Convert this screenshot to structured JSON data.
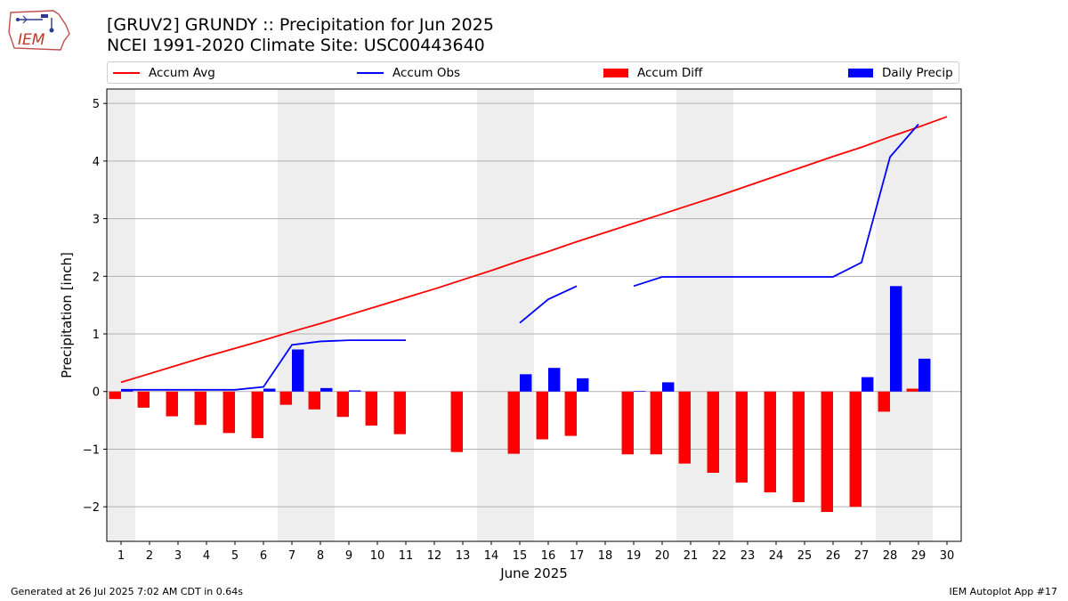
{
  "header": {
    "title_line1": "[GRUV2] GRUNDY :: Precipitation for Jun 2025",
    "title_line2": "NCEI 1991-2020 Climate Site: USC00443640",
    "logo_text": "IEM"
  },
  "footer": {
    "generated": "Generated at 26 Jul 2025 7:02 AM CDT in 0.64s",
    "app": "IEM Autoplot App #17"
  },
  "colors": {
    "avg": "#ff0000",
    "obs": "#0000ff",
    "diff": "#ff0000",
    "daily": "#0000ff",
    "weekend_band": "#eeeeee",
    "grid": "#b0b0b0"
  },
  "chart_data": {
    "type": "bar",
    "title": "[GRUV2] GRUNDY :: Precipitation for Jun 2025",
    "subtitle": "NCEI 1991-2020 Climate Site: USC00443640",
    "xlabel": "June 2025",
    "ylabel": "Precipitation [inch]",
    "xlim": [
      0.5,
      30.5
    ],
    "ylim": [
      -2.6,
      5.25
    ],
    "yticks": [
      -2,
      -1,
      0,
      1,
      2,
      3,
      4,
      5
    ],
    "ytick_labels": [
      "−2",
      "−1",
      "0",
      "1",
      "2",
      "3",
      "4",
      "5"
    ],
    "grid": true,
    "legend_placement": "top",
    "days": [
      1,
      2,
      3,
      4,
      5,
      6,
      7,
      8,
      9,
      10,
      11,
      12,
      13,
      14,
      15,
      16,
      17,
      18,
      19,
      20,
      21,
      22,
      23,
      24,
      25,
      26,
      27,
      28,
      29,
      30
    ],
    "shaded_days": [
      1,
      7,
      8,
      14,
      15,
      21,
      22,
      28,
      29
    ],
    "series": [
      {
        "name": "Accum Avg",
        "kind": "line",
        "values": [
          0.16,
          0.31,
          0.46,
          0.61,
          0.75,
          0.89,
          1.04,
          1.18,
          1.33,
          1.48,
          1.63,
          1.78,
          1.94,
          2.1,
          2.27,
          2.43,
          2.6,
          2.76,
          2.92,
          3.08,
          3.24,
          3.4,
          3.57,
          3.74,
          3.91,
          4.08,
          4.24,
          4.42,
          4.59,
          4.77
        ]
      },
      {
        "name": "Accum Obs",
        "kind": "line",
        "values": [
          0.03,
          0.03,
          0.03,
          0.03,
          0.03,
          0.08,
          0.81,
          0.87,
          0.89,
          0.89,
          0.89,
          null,
          null,
          null,
          1.19,
          1.6,
          1.83,
          null,
          1.83,
          1.99,
          1.99,
          1.99,
          1.99,
          1.99,
          1.99,
          1.99,
          2.24,
          4.07,
          4.64,
          null
        ]
      },
      {
        "name": "Accum Diff",
        "kind": "bar",
        "values": [
          -0.13,
          -0.28,
          -0.43,
          -0.58,
          -0.72,
          -0.81,
          -0.23,
          -0.31,
          -0.44,
          -0.59,
          -0.74,
          null,
          -1.05,
          null,
          -1.08,
          -0.83,
          -0.77,
          null,
          -1.09,
          -1.09,
          -1.25,
          -1.41,
          -1.58,
          -1.75,
          -1.92,
          -2.09,
          -2.0,
          -0.35,
          0.05,
          null
        ]
      },
      {
        "name": "Daily Precip",
        "kind": "bar",
        "values": [
          0.03,
          0,
          0,
          0,
          0,
          0.05,
          0.73,
          0.06,
          0.02,
          0,
          0,
          null,
          0,
          null,
          0.3,
          0.41,
          0.23,
          null,
          0.01,
          0.16,
          0,
          0,
          0,
          0,
          0,
          0,
          0.25,
          1.83,
          0.57,
          null
        ]
      }
    ]
  }
}
